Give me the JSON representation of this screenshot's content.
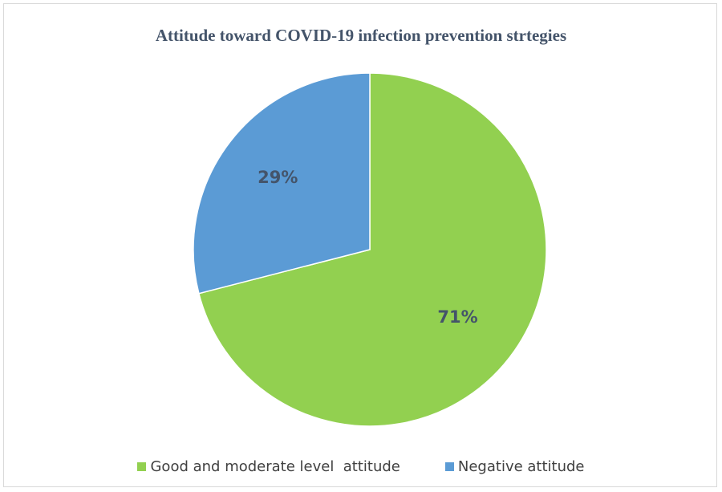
{
  "chart_data": {
    "type": "pie",
    "title": "Attitude toward COVID-19 infection prevention strtegies",
    "slices": [
      {
        "name": "Good and moderate level  attitude",
        "value": 71,
        "label": "71%",
        "color": "#92d050"
      },
      {
        "name": "Negative attitude",
        "value": 29,
        "label": "29%",
        "color": "#5b9bd5"
      }
    ],
    "legend_position": "bottom"
  }
}
